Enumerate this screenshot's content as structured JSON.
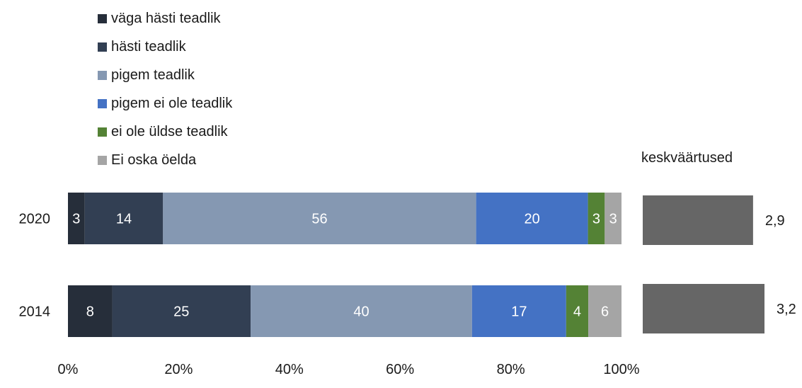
{
  "chart_data": {
    "type": "bar",
    "orientation": "horizontal",
    "stacked": true,
    "normalized": true,
    "categories": [
      "2020",
      "2014"
    ],
    "series": [
      {
        "name": "väga hästi teadlik",
        "color": "#262e3a",
        "values": [
          3,
          8
        ]
      },
      {
        "name": "hästi teadlik",
        "color": "#323f53",
        "values": [
          14,
          25
        ]
      },
      {
        "name": "pigem teadlik",
        "color": "#8598b2",
        "values": [
          56,
          40
        ]
      },
      {
        "name": "pigem ei ole teadlik",
        "color": "#4472c4",
        "values": [
          20,
          17
        ]
      },
      {
        "name": "ei ole üldse teadlik",
        "color": "#548235",
        "values": [
          3,
          4
        ]
      },
      {
        "name": "Ei oska öelda",
        "color": "#a5a5a5",
        "values": [
          3,
          6
        ]
      }
    ],
    "x_ticks": [
      "0%",
      "20%",
      "40%",
      "60%",
      "80%",
      "100%"
    ],
    "xlim": [
      0,
      100
    ],
    "legend_position": "top-left",
    "grid": false,
    "means": {
      "title": "keskväärtused",
      "color": "#666666",
      "labels": [
        "2,9",
        "3,2"
      ],
      "values": [
        2.9,
        3.2
      ]
    }
  }
}
